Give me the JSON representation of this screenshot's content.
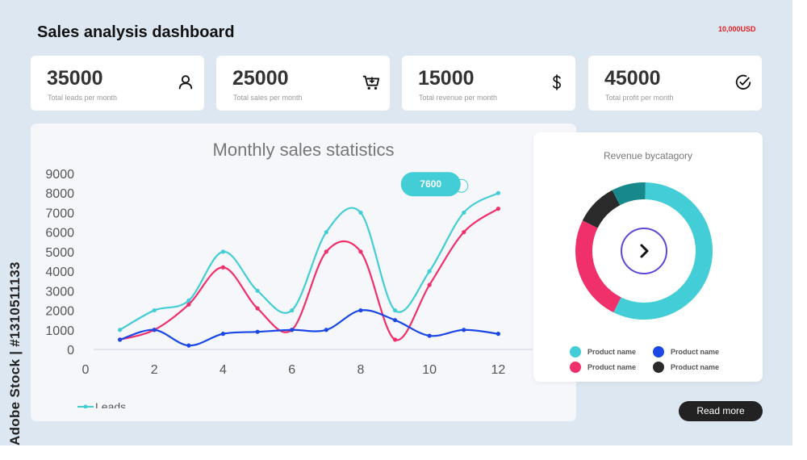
{
  "header": {
    "title": "Sales analysis dashboard",
    "budget": "10,000USD"
  },
  "cards": [
    {
      "value": "35000",
      "label": "Total leads per month",
      "icon": "user-icon"
    },
    {
      "value": "25000",
      "label": "Total sales per month",
      "icon": "cart-icon"
    },
    {
      "value": "15000",
      "label": "Total revenue per month",
      "icon": "dollar-icon"
    },
    {
      "value": "45000",
      "label": "Total profit per month",
      "icon": "check-circle-icon"
    }
  ],
  "line_chart": {
    "title": "Monthly sales statistics",
    "tooltip_value": "7600",
    "legend_label": "Leads"
  },
  "donut_panel": {
    "title": "Revenue bycatagory",
    "center_icon": "chevron-right-icon",
    "legend": [
      {
        "label": "Product name",
        "color": "#43cdd6"
      },
      {
        "label": "Product name",
        "color": "#1a47e6"
      },
      {
        "label": "Product name",
        "color": "#f0306a"
      },
      {
        "label": "Product name",
        "color": "#2a2a2a"
      }
    ]
  },
  "read_more_label": "Read more",
  "side_credit": "Adobe Stock | #1310511133",
  "chart_data": [
    {
      "type": "line",
      "title": "Monthly sales statistics",
      "xlim": [
        0,
        13
      ],
      "ylim": [
        0,
        9000
      ],
      "xticks": [
        0,
        2,
        4,
        6,
        8,
        10,
        12
      ],
      "yticks": [
        0,
        1000,
        2000,
        3000,
        4000,
        5000,
        6000,
        7000,
        8000,
        9000
      ],
      "x": [
        1,
        2,
        3,
        4,
        5,
        6,
        7,
        8,
        9,
        10,
        11,
        12
      ],
      "series": [
        {
          "name": "Leads",
          "color": "#43cdd6",
          "values": [
            1000,
            2000,
            2500,
            5000,
            3000,
            2000,
            6000,
            7000,
            2000,
            4000,
            7000,
            8000
          ]
        },
        {
          "color": "#f0306a",
          "values": [
            500,
            1000,
            2300,
            4200,
            2100,
            1000,
            5000,
            5000,
            500,
            3300,
            6000,
            7200
          ]
        },
        {
          "color": "#1a47e6",
          "values": [
            500,
            1000,
            200,
            800,
            900,
            1000,
            1000,
            2000,
            1500,
            700,
            1000,
            800
          ]
        }
      ],
      "annotations": [
        "7600"
      ],
      "grid": false,
      "legend": "bottom-left"
    },
    {
      "type": "pie",
      "title": "Revenue bycatagory",
      "categories": [
        "Product name",
        "Product name",
        "Product name",
        "Product name"
      ],
      "values": [
        57,
        25,
        10,
        8
      ],
      "colors": [
        "#43cdd6",
        "#f0306a",
        "#2a2a2a",
        "#17888c"
      ]
    }
  ]
}
